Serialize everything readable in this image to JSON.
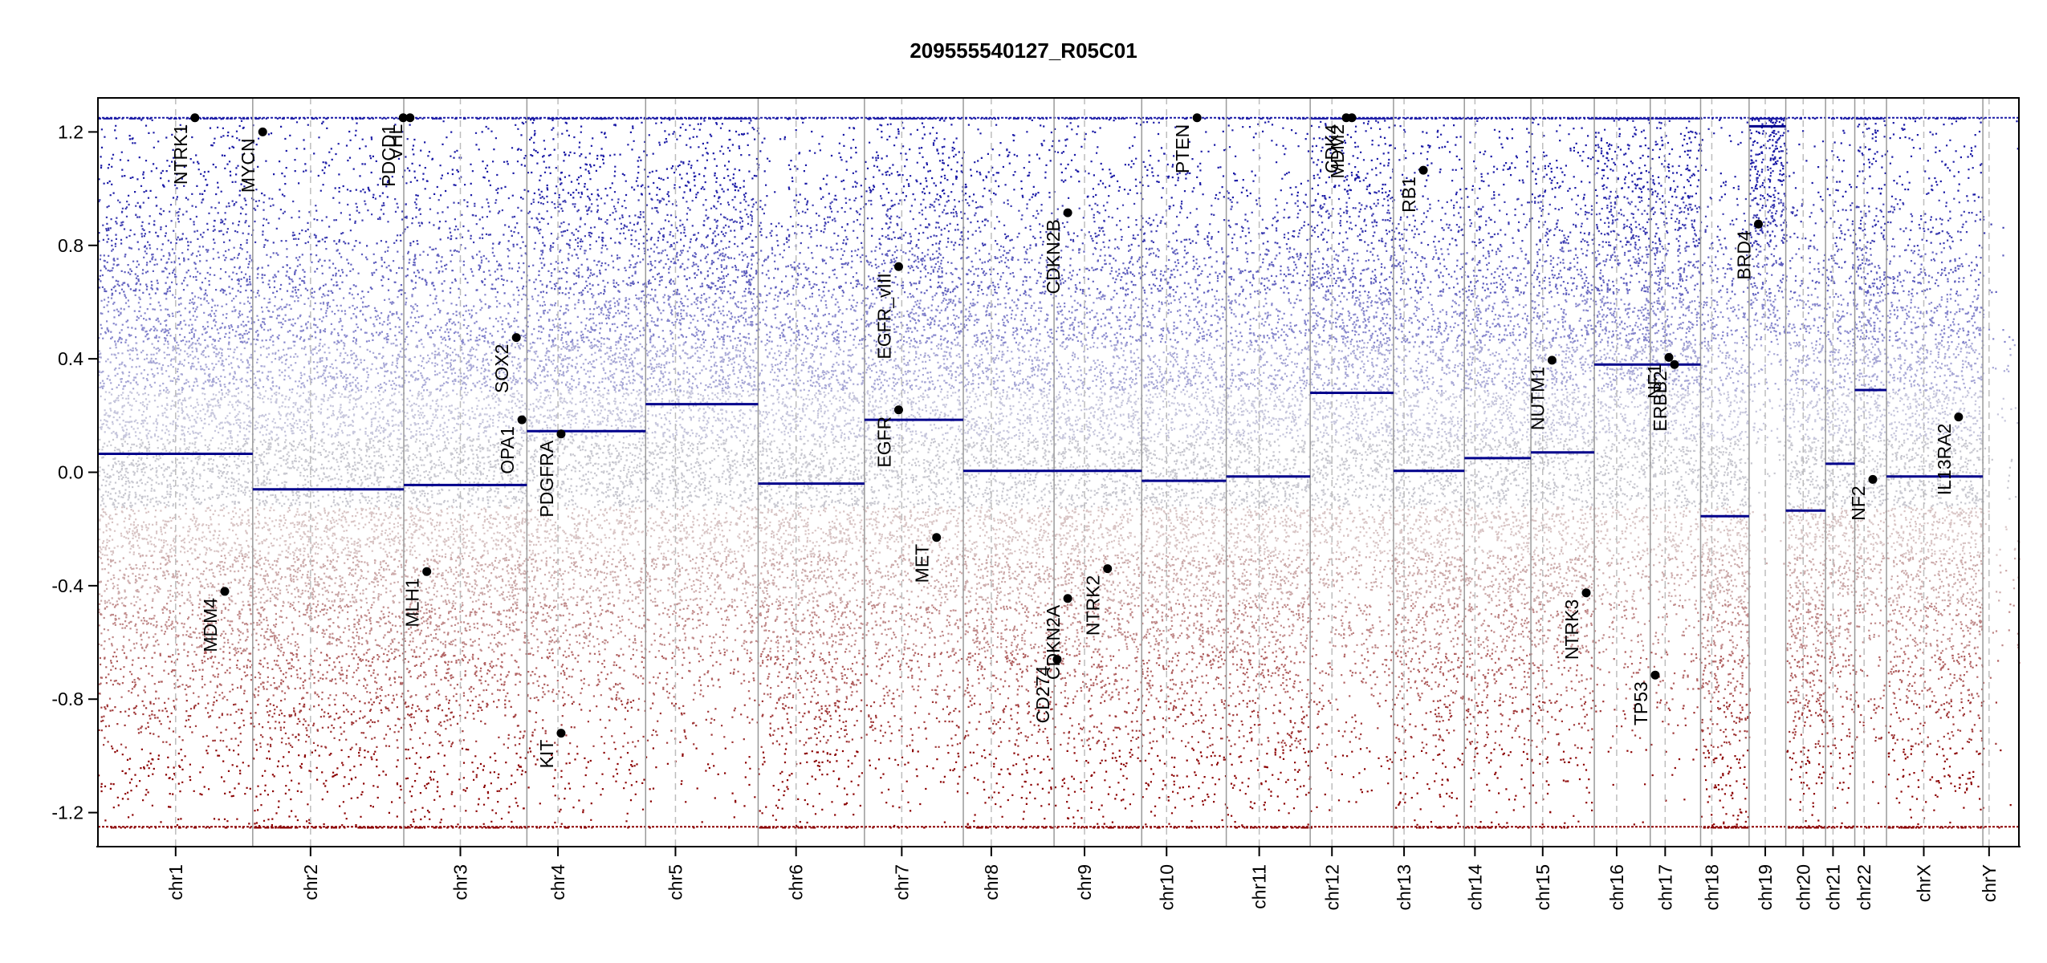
{
  "chart_data": {
    "type": "scatter",
    "title": "209555540127_R05C01",
    "xlabel": "",
    "ylabel": "",
    "ylim": [
      -1.32,
      1.32
    ],
    "yticks": [
      -1.2,
      -0.8,
      -0.4,
      0.0,
      0.4,
      0.8,
      1.2
    ],
    "ytick_labels": [
      "-1.2",
      "-0.8",
      "-0.4",
      "0.0",
      "0.4",
      "0.8",
      "1.2"
    ],
    "clip": 1.25,
    "colors": {
      "gain": "#1a1aa6",
      "loss": "#8b0000",
      "neutral": "#b8b8c8",
      "segment": "#00008b",
      "boundary": "#9a9a9a",
      "centromere": "#bdbdbd",
      "gene_dot": "#000000"
    },
    "chromosomes": [
      {
        "name": "chr1",
        "start": 0,
        "end": 249,
        "centromere": 125,
        "segment": 0.065
      },
      {
        "name": "chr2",
        "start": 249,
        "end": 492,
        "centromere": 93,
        "segment": -0.06
      },
      {
        "name": "chr3",
        "start": 492,
        "end": 690,
        "centromere": 91,
        "segment": -0.045
      },
      {
        "name": "chr4",
        "start": 690,
        "end": 881,
        "centromere": 50,
        "segment": 0.145
      },
      {
        "name": "chr5",
        "start": 881,
        "end": 1062,
        "centromere": 48,
        "segment": 0.24
      },
      {
        "name": "chr6",
        "start": 1062,
        "end": 1233,
        "centromere": 61,
        "segment": -0.04
      },
      {
        "name": "chr7",
        "start": 1233,
        "end": 1392,
        "centromere": 60,
        "segment": 0.185
      },
      {
        "name": "chr8",
        "start": 1392,
        "end": 1538,
        "centromere": 45,
        "segment": 0.005
      },
      {
        "name": "chr9",
        "start": 1538,
        "end": 1679,
        "centromere": 49,
        "segment": 0.005
      },
      {
        "name": "chr10",
        "start": 1679,
        "end": 1815,
        "centromere": 40,
        "segment": -0.03
      },
      {
        "name": "chr11",
        "start": 1815,
        "end": 1950,
        "centromere": 53,
        "segment": -0.015
      },
      {
        "name": "chr12",
        "start": 1950,
        "end": 2084,
        "centromere": 35,
        "segment": 0.28
      },
      {
        "name": "chr13",
        "start": 2084,
        "end": 2198,
        "centromere": 17,
        "segment": 0.005
      },
      {
        "name": "chr14",
        "start": 2198,
        "end": 2305,
        "centromere": 17,
        "segment": 0.05
      },
      {
        "name": "chr15",
        "start": 2305,
        "end": 2407,
        "centromere": 19,
        "segment": 0.07
      },
      {
        "name": "chr16",
        "start": 2407,
        "end": 2497,
        "centromere": 36,
        "segment": 0.38
      },
      {
        "name": "chr17",
        "start": 2497,
        "end": 2578,
        "centromere": 24,
        "segment": 0.38
      },
      {
        "name": "chr18",
        "start": 2578,
        "end": 2656,
        "centromere": 18,
        "segment": -0.155
      },
      {
        "name": "chr19",
        "start": 2656,
        "end": 2715,
        "centromere": 26,
        "segment": 1.22
      },
      {
        "name": "chr20",
        "start": 2715,
        "end": 2779,
        "centromere": 28,
        "segment": -0.135
      },
      {
        "name": "chr21",
        "start": 2779,
        "end": 2826,
        "centromere": 12,
        "segment": 0.03
      },
      {
        "name": "chr22",
        "start": 2826,
        "end": 2877,
        "centromere": 15,
        "segment": 0.29
      },
      {
        "name": "chrX",
        "start": 2877,
        "end": 3032,
        "centromere": 60,
        "segment": -0.015
      },
      {
        "name": "chrY",
        "start": 3032,
        "end": 3090,
        "centromere": 10,
        "segment": null
      }
    ],
    "genes": [
      {
        "name": "NTRK1",
        "pos": 156,
        "value": 1.25
      },
      {
        "name": "MDM4",
        "pos": 204,
        "value": -0.42
      },
      {
        "name": "MYCN",
        "pos": 265,
        "value": 1.2
      },
      {
        "name": "PDGFRA",
        "pos": 745,
        "value": 0.135
      },
      {
        "name": "KIT",
        "pos": 745,
        "value": -0.92
      },
      {
        "name": "MLH1",
        "pos": 529,
        "value": -0.35
      },
      {
        "name": "VHL",
        "pos": 502,
        "value": 1.25
      },
      {
        "name": "PDCD1",
        "pos": 491,
        "value": 1.25
      },
      {
        "name": "SOX2",
        "pos": 673,
        "value": 0.475
      },
      {
        "name": "OPA1",
        "pos": 682,
        "value": 0.185
      },
      {
        "name": "EGFR_vIII",
        "pos": 1288,
        "value": 0.725
      },
      {
        "name": "EGFR",
        "pos": 1288,
        "value": 0.22
      },
      {
        "name": "MET",
        "pos": 1349,
        "value": -0.23
      },
      {
        "name": "CDKN2B",
        "pos": 1560,
        "value": 0.915
      },
      {
        "name": "CDKN2A",
        "pos": 1560,
        "value": -0.445
      },
      {
        "name": "CD274",
        "pos": 1543,
        "value": -0.66
      },
      {
        "name": "NTRK2",
        "pos": 1624,
        "value": -0.34
      },
      {
        "name": "PTEN",
        "pos": 1768,
        "value": 1.25
      },
      {
        "name": "CDK4",
        "pos": 2008,
        "value": 1.25
      },
      {
        "name": "MDM2",
        "pos": 2017,
        "value": 1.25
      },
      {
        "name": "RB1",
        "pos": 2132,
        "value": 1.065
      },
      {
        "name": "NUTM1",
        "pos": 2339,
        "value": 0.395
      },
      {
        "name": "NTRK3",
        "pos": 2394,
        "value": -0.425
      },
      {
        "name": "TP53",
        "pos": 2505,
        "value": -0.715
      },
      {
        "name": "NF1",
        "pos": 2527,
        "value": 0.405
      },
      {
        "name": "ERBB2",
        "pos": 2536,
        "value": 0.38
      },
      {
        "name": "BRD4",
        "pos": 2671,
        "value": 0.875
      },
      {
        "name": "NF2",
        "pos": 2855,
        "value": -0.025
      },
      {
        "name": "IL13RA2",
        "pos": 2993,
        "value": 0.195
      }
    ]
  }
}
